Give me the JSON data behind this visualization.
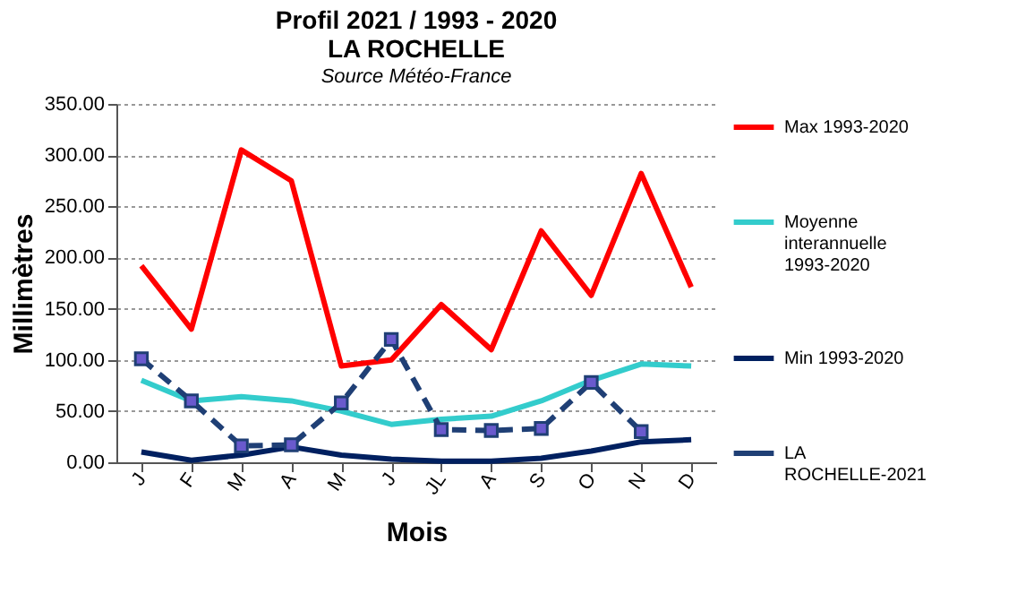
{
  "chart_data": {
    "type": "line",
    "title": "Profil 2021 / 1993 - 2020\nLA ROCHELLE",
    "subtitle": "Source Météo-France",
    "xlabel": "Mois",
    "ylabel": "Millimètres",
    "categories": [
      "J",
      "F",
      "M",
      "A",
      "M",
      "J",
      "JL",
      "A",
      "S",
      "O",
      "N",
      "D"
    ],
    "series": [
      {
        "name": "Max 1993-2020",
        "color": "#ff0000",
        "marker": "none",
        "line_style": "solid",
        "values": [
          192,
          130,
          305,
          275,
          94,
          100,
          154,
          110,
          226,
          163,
          282,
          171
        ]
      },
      {
        "name": "Moyenne interannuelle 1993-2020",
        "color": "#33cccc",
        "marker": "none",
        "line_style": "solid",
        "values": [
          80,
          60,
          64,
          60,
          50,
          37,
          42,
          45,
          60,
          80,
          96,
          94
        ]
      },
      {
        "name": "Min 1993-2020",
        "color": "#002060",
        "marker": "none",
        "line_style": "solid",
        "values": [
          10,
          2,
          7,
          15,
          7,
          3,
          1,
          1,
          4,
          11,
          20,
          22
        ]
      },
      {
        "name": "LA ROCHELLE-2021",
        "color": "#1f3f75",
        "marker": "square",
        "line_style": "dashed",
        "values": [
          101,
          60,
          16,
          17,
          58,
          120,
          32,
          31,
          33,
          78,
          30,
          null
        ]
      }
    ],
    "ylim": [
      0,
      350
    ],
    "yticks": [
      {
        "value": 0,
        "label": "0.00"
      },
      {
        "value": 50,
        "label": "50.00"
      },
      {
        "value": 100,
        "label": "100.00"
      },
      {
        "value": 150,
        "label": "150.00"
      },
      {
        "value": 200,
        "label": "200.00"
      },
      {
        "value": 250,
        "label": "250.00"
      },
      {
        "value": 300,
        "label": "300.00"
      },
      {
        "value": 350,
        "label": "350.00"
      }
    ],
    "grid": "y",
    "legend": "right"
  }
}
